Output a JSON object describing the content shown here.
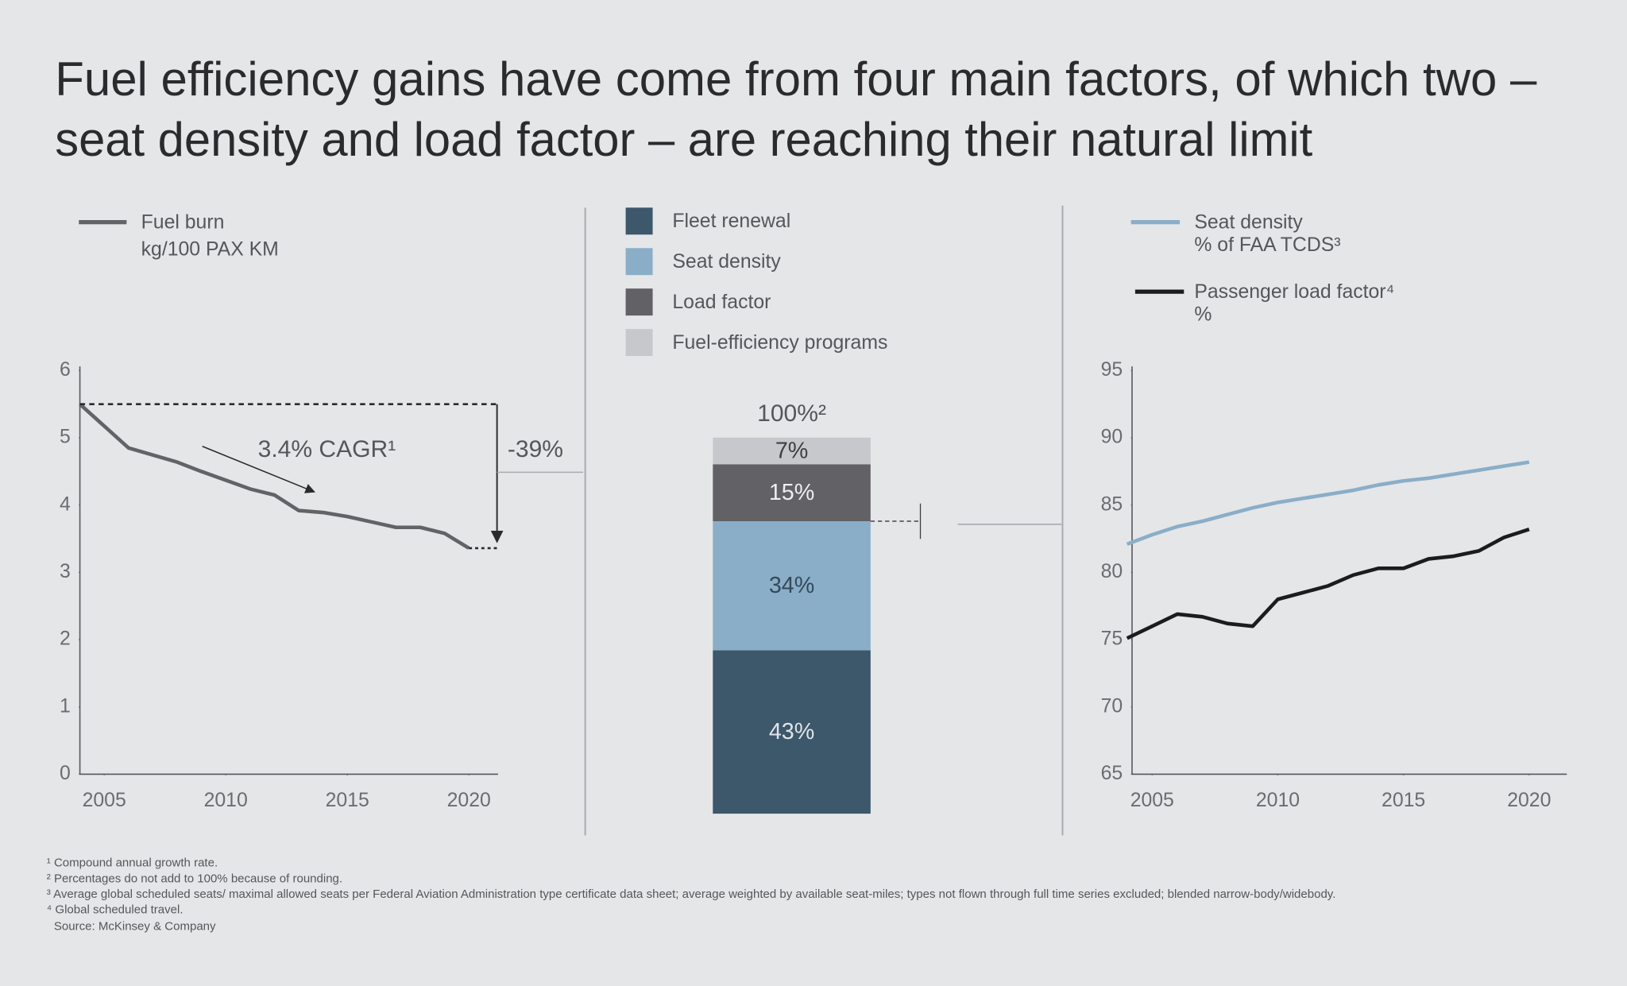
{
  "title": [
    "Fuel efficiency gains have come from four main factors, of which two –",
    "seat density and load factor – are reaching their natural limit"
  ],
  "chart_data": [
    {
      "type": "line",
      "x": [
        2004,
        2006,
        2008,
        2009,
        2011,
        2012,
        2013,
        2014,
        2015,
        2016,
        2017,
        2018,
        2019,
        2020
      ],
      "series": [
        {
          "name": "Fuel burn",
          "unit": "kg/100 PAX KM",
          "color": "#636266",
          "values": [
            5.5,
            4.85,
            4.64,
            4.5,
            4.24,
            4.15,
            3.92,
            3.89,
            3.83,
            3.75,
            3.67,
            3.67,
            3.58,
            3.36
          ]
        }
      ],
      "xlim": [
        2004,
        2021.2
      ],
      "xticks": [
        2005,
        2010,
        2015,
        2020
      ],
      "ylim": [
        0,
        6
      ],
      "yticks": [
        0,
        1,
        2,
        3,
        4,
        5,
        6
      ],
      "annotations": [
        "3.4% CAGR¹",
        "-39%"
      ]
    },
    {
      "type": "bar",
      "stacked": true,
      "total_label": "100%²",
      "series": [
        {
          "name": "Fleet renewal",
          "color": "#3d576b",
          "label_color": "#dfe4e8",
          "values": [
            43
          ],
          "value_labels": [
            "43%"
          ]
        },
        {
          "name": "Seat density",
          "color": "#8aaec8",
          "label_color": "#34495a",
          "values": [
            34
          ],
          "value_labels": [
            "34%"
          ]
        },
        {
          "name": "Load factor",
          "color": "#626166",
          "label_color": "#eeeeee",
          "values": [
            15
          ],
          "value_labels": [
            "15%"
          ]
        },
        {
          "name": "Fuel-efficiency programs",
          "color": "#c7c8cb",
          "label_color": "#3f3f42",
          "values": [
            7
          ],
          "value_labels": [
            "7%"
          ]
        }
      ]
    },
    {
      "type": "line",
      "x": [
        2004,
        2005,
        2006,
        2007,
        2008,
        2009,
        2010,
        2011,
        2012,
        2013,
        2014,
        2015,
        2016,
        2017,
        2018,
        2019,
        2020
      ],
      "series": [
        {
          "name": "Seat density",
          "unit": "% of FAA TCDS³",
          "color": "#8aaec8",
          "values": [
            82.1,
            82.8,
            83.4,
            83.8,
            84.3,
            84.8,
            85.2,
            85.5,
            85.8,
            86.1,
            86.5,
            86.8,
            87.0,
            87.3,
            87.6,
            87.9,
            88.2
          ]
        },
        {
          "name": "Passenger load factor⁴",
          "unit": "%",
          "color": "#1c1c1e",
          "values": [
            75.1,
            76.0,
            76.9,
            76.7,
            76.2,
            76.0,
            78.0,
            78.5,
            79.0,
            79.8,
            80.3,
            80.3,
            81.0,
            81.2,
            81.6,
            82.6,
            83.2
          ]
        }
      ],
      "xlim": [
        2004.2,
        2021.5
      ],
      "xticks": [
        2005,
        2010,
        2015,
        2020
      ],
      "ylim": [
        65,
        95
      ],
      "yticks": [
        65,
        70,
        75,
        80,
        85,
        90,
        95
      ]
    }
  ],
  "footnotes": [
    "¹ Compound annual growth rate.",
    "² Percentages do not add to 100% because of rounding.",
    "³ Average global scheduled seats/ maximal allowed seats per Federal Aviation Administration type certificate data sheet; average weighted by available seat-miles; types not flown through full time series excluded; blended narrow-body/widebody.",
    "⁴ Global scheduled travel."
  ],
  "source": "Source: McKinsey & Company"
}
